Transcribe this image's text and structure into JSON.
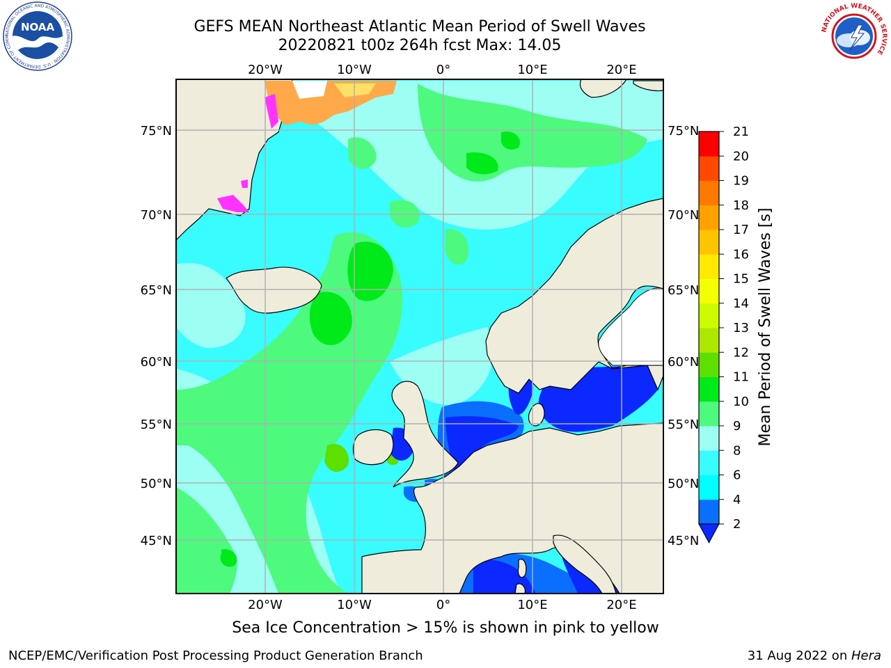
{
  "title": {
    "line1": "GEFS MEAN Northeast Atlantic Mean Period of Swell Waves",
    "line2": "20220821 t00z 264h fcst   Max: 14.05"
  },
  "map": {
    "lon_labels": [
      "20°W",
      "10°W",
      "0°",
      "10°E",
      "20°E"
    ],
    "lat_labels": [
      "75°N",
      "70°N",
      "65°N",
      "60°N",
      "55°N",
      "50°N",
      "45°N"
    ],
    "colors": {
      "land": "#efecdc",
      "ice_pink": "#ff33ff",
      "ice_orange": "#ffa94a",
      "ice_yellow": "#ffe066",
      "grid": "#b0b0b0"
    }
  },
  "colorbar": {
    "label": "Mean Period of Swell Waves [s]",
    "ticks": [
      "2",
      "4",
      "6",
      "8",
      "9",
      "10",
      "11",
      "12",
      "13",
      "14",
      "15",
      "16",
      "17",
      "18",
      "19",
      "20",
      "21"
    ],
    "colors": [
      "#0a28ff",
      "#0a6eff",
      "#00ffff",
      "#38fcff",
      "#9dfff4",
      "#4dfa7e",
      "#00ea1a",
      "#5ddf00",
      "#aee800",
      "#cdfc00",
      "#f5ff00",
      "#ffea00",
      "#ffc400",
      "#ffa200",
      "#ff7800",
      "#ff4800",
      "#ff0000"
    ]
  },
  "note": "Sea Ice Concentration > 15% is shown in pink to yellow",
  "footer": {
    "left": "NCEP/EMC/Verification Post Processing Product Generation Branch",
    "date": "31 Aug 2022 on ",
    "machine": "Hera"
  },
  "logos": {
    "noaa_text": "NOAA",
    "noaa_ring": "NATIONAL OCEANIC AND ATMOSPHERIC ADMINISTRATION · U.S. DEPARTMENT OF COMMERCE",
    "nws_ring": "NATIONAL WEATHER SERVICE"
  }
}
